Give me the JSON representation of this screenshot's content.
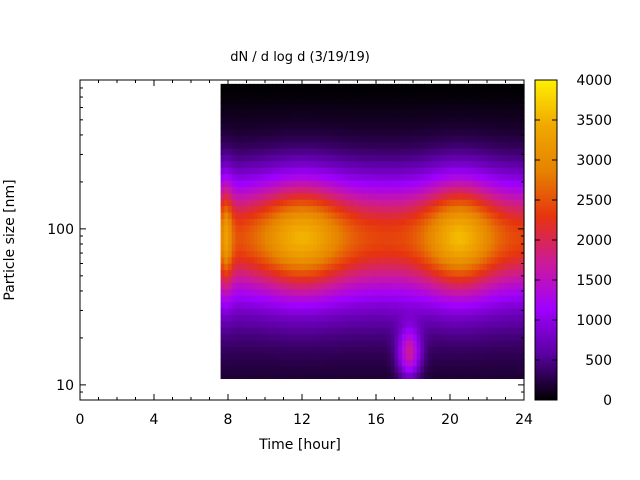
{
  "chart_data": {
    "type": "heatmap",
    "title": "dN / d log d (3/19/19)",
    "xlabel": "Time [hour]",
    "ylabel": "Particle size [nm]",
    "xlim": [
      0,
      24
    ],
    "xticks": [
      0,
      4,
      8,
      12,
      16,
      20,
      24
    ],
    "ylim": [
      8,
      900
    ],
    "y_scale": "log",
    "yticks": [
      10,
      100
    ],
    "colorbar": {
      "range": [
        0,
        4000
      ],
      "ticks": [
        0,
        500,
        1000,
        1500,
        2000,
        2500,
        3000,
        3500,
        4000
      ],
      "colormap": "gnuplot (black-purple-red-orange-yellow)",
      "colors": [
        "#000000",
        "#5a00a0",
        "#a000ff",
        "#cc1a99",
        "#e6330f",
        "#e68200",
        "#f0a800",
        "#fff000"
      ]
    },
    "data_coverage": {
      "start_hour": 7.6,
      "end_hour": 24,
      "min_size_nm": 11,
      "max_size_nm": 850
    },
    "mode_peaks": [
      {
        "time_hour": 7.9,
        "size_nm": 70,
        "value": 3000
      },
      {
        "time_hour": 12,
        "size_nm": 90,
        "value": 3600
      },
      {
        "time_hour": 20.5,
        "size_nm": 85,
        "value": 3900
      }
    ],
    "grid": false,
    "legend": "colorbar-right"
  }
}
